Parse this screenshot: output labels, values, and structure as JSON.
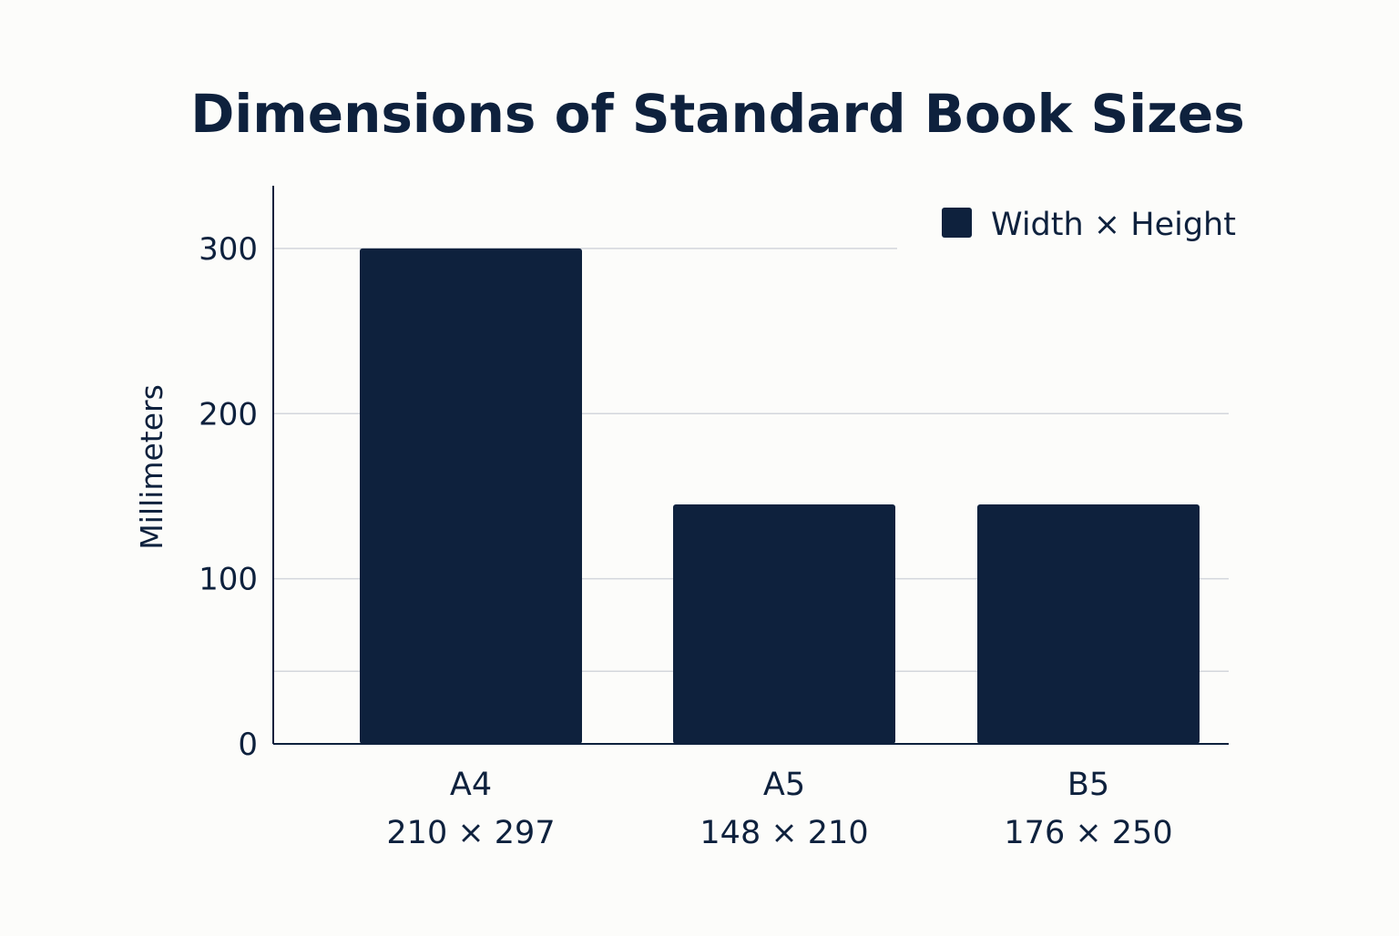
{
  "chart_data": {
    "type": "bar",
    "title": "Dimensions of Standard Book Sizes",
    "xlabel": "",
    "ylabel": "Millimeters",
    "categories": [
      "A4",
      "A5",
      "B5"
    ],
    "category_sublabels": [
      "210 × 297",
      "148 × 210",
      "176 × 250"
    ],
    "series": [
      {
        "name": "Width × Height",
        "values": [
          300,
          145,
          145
        ]
      }
    ],
    "ylim": [
      0,
      338
    ],
    "yticks": [
      0,
      100,
      200,
      300
    ],
    "gridlines": [
      100,
      200,
      300
    ],
    "minor_gridlines": [
      44
    ],
    "grid": true,
    "legend_position": "top-right",
    "colors": {
      "bar": "#0e213d",
      "text": "#0e213d",
      "grid": "#d3d6dc",
      "axis": "#0e213d",
      "background": "#fcfcfa"
    }
  }
}
